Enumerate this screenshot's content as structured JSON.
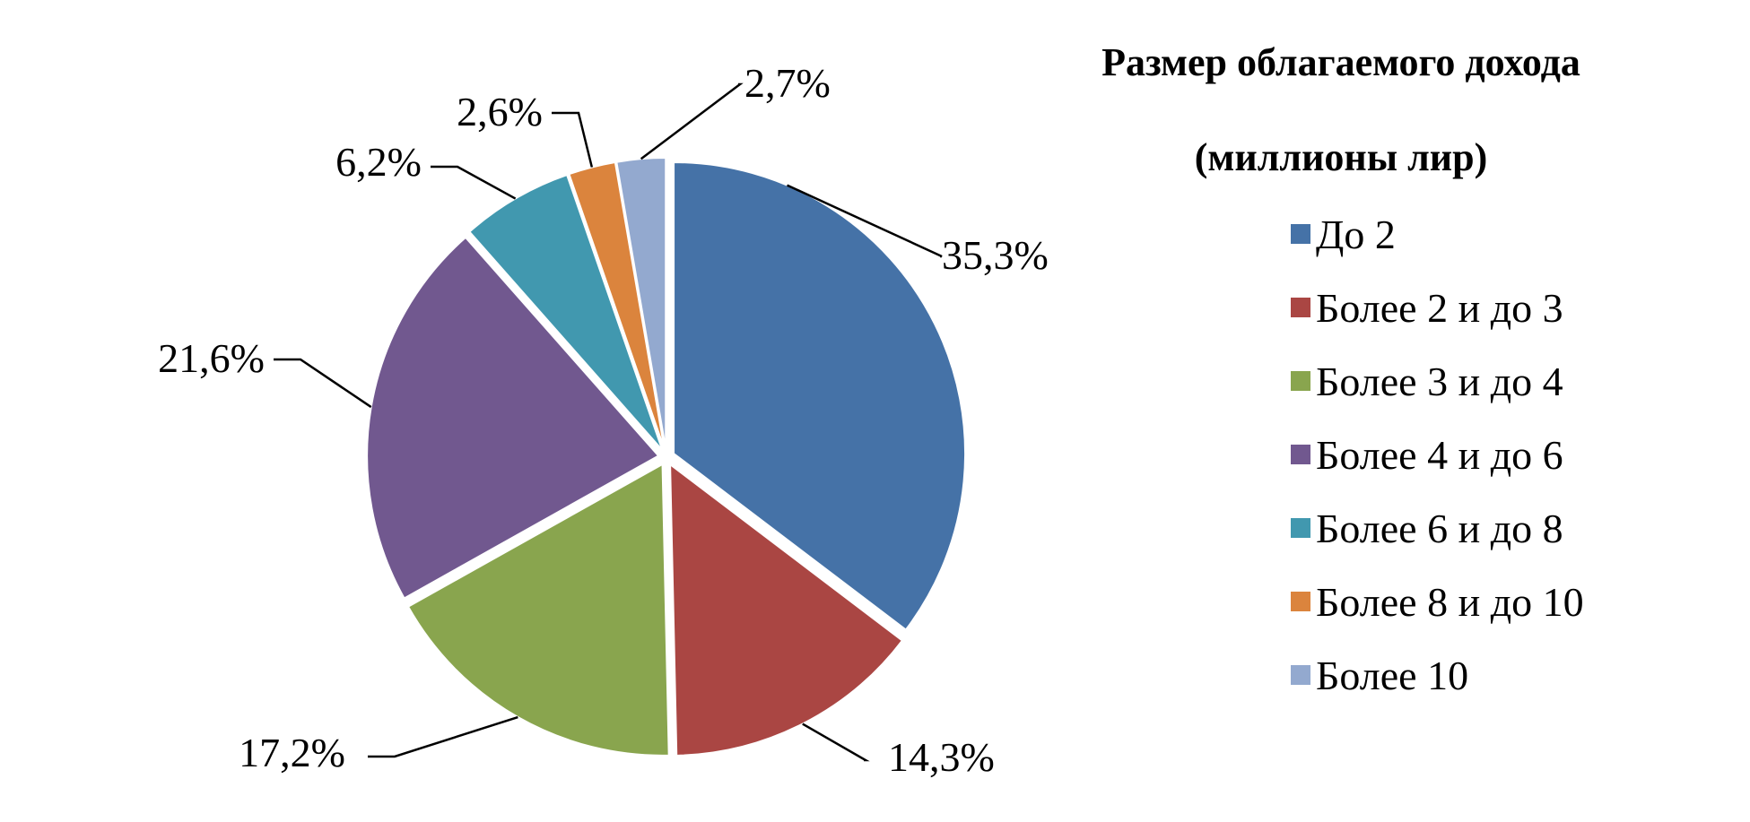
{
  "chart_data": {
    "type": "pie",
    "title": "Размер облагаемого дохода",
    "subtitle": "(миллионы лир)",
    "legend_position": "right",
    "slices": [
      {
        "name": "До 2",
        "value": 35.3,
        "label": "35,3%",
        "color": "#4572A7"
      },
      {
        "name": "Более 2 и до 3",
        "value": 14.3,
        "label": "14,3%",
        "color": "#AA4643"
      },
      {
        "name": "Более 3 и до 4",
        "value": 17.2,
        "label": "17,2%",
        "color": "#89A54E"
      },
      {
        "name": "Более 4 и до 6",
        "value": 21.6,
        "label": "21,6%",
        "color": "#71588F"
      },
      {
        "name": "Более 6 и до 8",
        "value": 6.2,
        "label": "6,2%",
        "color": "#4198AF"
      },
      {
        "name": "Более 8 и до 10",
        "value": 2.6,
        "label": "2,6%",
        "color": "#DB843D"
      },
      {
        "name": "Более 10",
        "value": 2.7,
        "label": "2,7%",
        "color": "#93A9CF"
      }
    ]
  }
}
